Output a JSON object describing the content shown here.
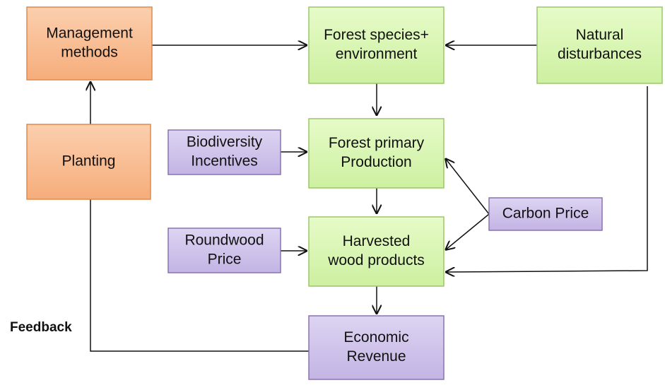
{
  "nodes": [
    {
      "lines": [
        "Management",
        "methods"
      ]
    },
    {
      "lines": [
        "Planting"
      ]
    },
    {
      "lines": [
        "Forest species+",
        "environment"
      ]
    },
    {
      "lines": [
        "Natural",
        "disturbances"
      ]
    },
    {
      "lines": [
        "Biodiversity",
        "Incentives"
      ]
    },
    {
      "lines": [
        "Forest primary",
        "Production"
      ]
    },
    {
      "lines": [
        "Carbon Price"
      ]
    },
    {
      "lines": [
        "Roundwood",
        "Price"
      ]
    },
    {
      "lines": [
        "Harvested",
        "wood products"
      ]
    },
    {
      "lines": [
        "Economic",
        "Revenue"
      ]
    }
  ],
  "feedback_label": "Feedback"
}
